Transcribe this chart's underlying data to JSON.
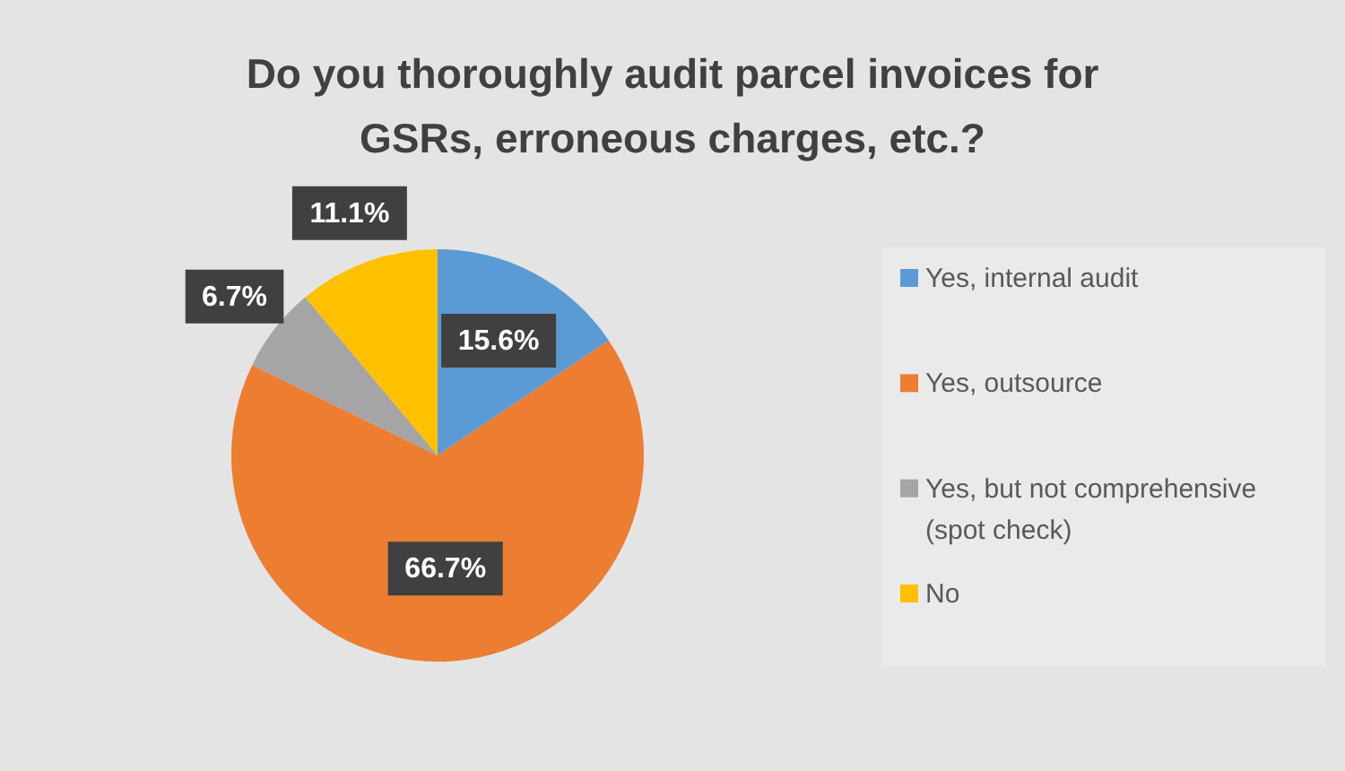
{
  "chart_data": {
    "type": "pie",
    "title": "Do you thoroughly audit parcel invoices for GSRs, erroneous charges, etc.?",
    "categories": [
      "Yes, internal audit",
      "Yes, outsource",
      "Yes, but not comprehensive (spot check)",
      "No"
    ],
    "values": [
      15.6,
      66.7,
      6.7,
      11.1
    ],
    "colors": [
      "#5b9bd5",
      "#ed7d31",
      "#a5a5a5",
      "#ffc000"
    ],
    "value_labels": [
      "15.6%",
      "66.7%",
      "6.7%",
      "11.1%"
    ],
    "legend": "right"
  }
}
